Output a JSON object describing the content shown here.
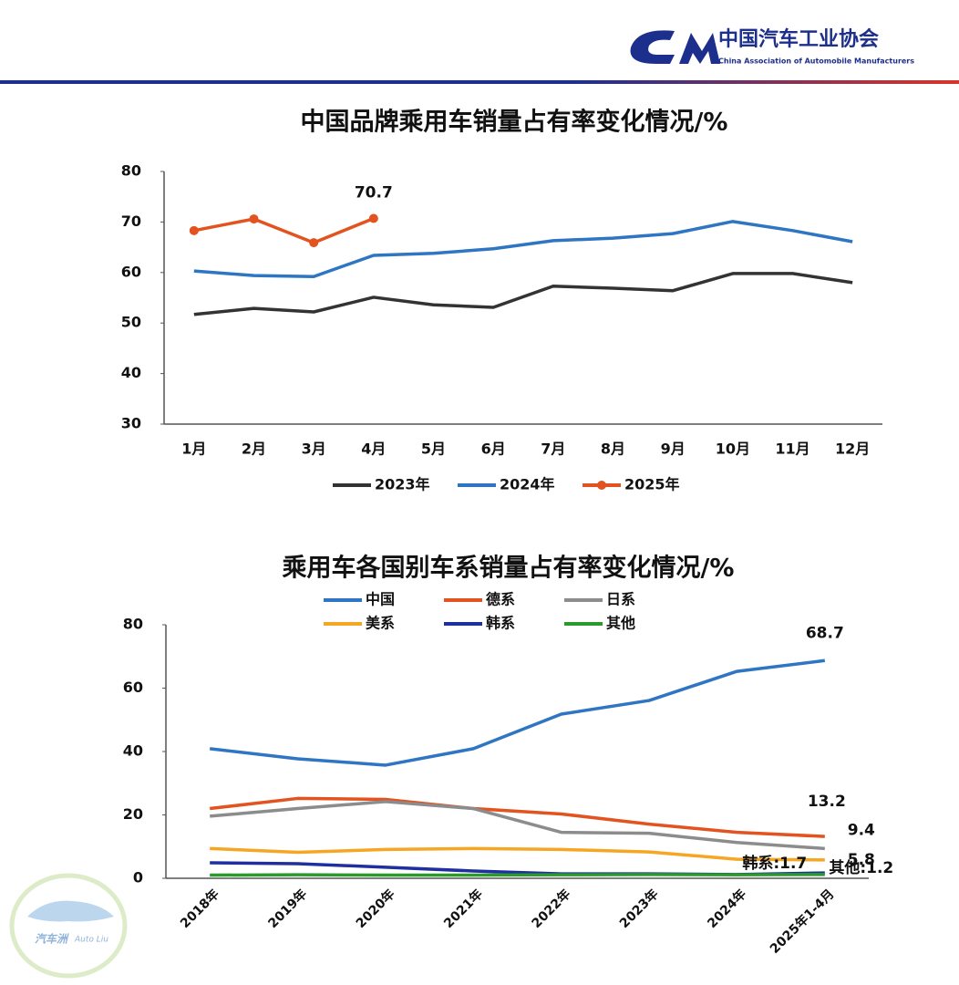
{
  "header": {
    "org_name": "中国汽车工业协会",
    "org_name_en": "China Association of Automobile Manufacturers",
    "corner_logo": "汽车洲",
    "corner_logo_en": "Auto Liu"
  },
  "chart_data": [
    {
      "type": "line",
      "title": "中国品牌乘用车销量占有率变化情况/%",
      "categories": [
        "1月",
        "2月",
        "3月",
        "4月",
        "5月",
        "6月",
        "7月",
        "8月",
        "9月",
        "10月",
        "11月",
        "12月"
      ],
      "ylim": [
        30,
        80
      ],
      "yticks": [
        30,
        40,
        50,
        60,
        70,
        80
      ],
      "grid": false,
      "legend": "bottom",
      "series": [
        {
          "name": "2023年",
          "color": "#333333",
          "values": [
            51.7,
            52.9,
            52.2,
            55.1,
            53.6,
            53.1,
            57.3,
            56.9,
            56.4,
            59.8,
            59.8,
            58.0
          ]
        },
        {
          "name": "2024年",
          "color": "#2e75c3",
          "values": [
            60.3,
            59.4,
            59.2,
            63.4,
            63.8,
            64.7,
            66.3,
            66.8,
            67.7,
            70.1,
            68.3,
            66.1
          ]
        },
        {
          "name": "2025年",
          "color": "#e2531f",
          "markers": true,
          "values": [
            68.3,
            70.6,
            65.9,
            70.7,
            null,
            null,
            null,
            null,
            null,
            null,
            null,
            null
          ],
          "value_labels": [
            null,
            null,
            null,
            "70.7",
            null,
            null,
            null,
            null,
            null,
            null,
            null,
            null
          ]
        }
      ]
    },
    {
      "type": "line",
      "title": "乘用车各国别车系销量占有率变化情况/%",
      "categories": [
        "2018年",
        "2019年",
        "2020年",
        "2021年",
        "2022年",
        "2023年",
        "2024年",
        "2025年1-4月"
      ],
      "ylim": [
        0,
        80
      ],
      "yticks": [
        0,
        20,
        40,
        60,
        80
      ],
      "grid": false,
      "legend": "top",
      "series": [
        {
          "name": "中国",
          "color": "#2e75c3",
          "values": [
            40.9,
            37.7,
            35.7,
            40.9,
            51.8,
            56.1,
            65.3,
            68.7
          ],
          "value_labels": [
            null,
            null,
            null,
            null,
            null,
            null,
            null,
            "68.7"
          ]
        },
        {
          "name": "德系",
          "color": "#e2531f",
          "values": [
            22.0,
            25.2,
            24.9,
            22.0,
            20.3,
            17.1,
            14.5,
            13.2
          ],
          "value_labels": [
            null,
            null,
            null,
            null,
            null,
            null,
            null,
            "13.2"
          ]
        },
        {
          "name": "日系",
          "color": "#8c8c8c",
          "values": [
            19.6,
            22.0,
            24.2,
            22.0,
            14.5,
            14.2,
            11.3,
            9.4
          ],
          "value_labels": [
            null,
            null,
            null,
            null,
            null,
            null,
            null,
            "9.4"
          ]
        },
        {
          "name": "美系",
          "color": "#f5a623",
          "values": [
            9.4,
            8.2,
            9.1,
            9.4,
            9.1,
            8.3,
            6.0,
            5.8
          ],
          "value_labels": [
            null,
            null,
            null,
            null,
            null,
            null,
            null,
            "5.8"
          ]
        },
        {
          "name": "韩系",
          "color": "#1f2fa0",
          "values": [
            4.9,
            4.6,
            3.5,
            2.3,
            1.4,
            1.4,
            1.2,
            1.7
          ],
          "value_labels": [
            null,
            null,
            null,
            null,
            null,
            null,
            null,
            "韩系:1.7"
          ]
        },
        {
          "name": "其他",
          "color": "#2a9a2a",
          "values": [
            1.0,
            1.1,
            1.0,
            1.0,
            1.1,
            1.2,
            1.1,
            1.2
          ],
          "value_labels": [
            null,
            null,
            null,
            null,
            null,
            null,
            null,
            "其他:1.2"
          ]
        }
      ]
    }
  ]
}
